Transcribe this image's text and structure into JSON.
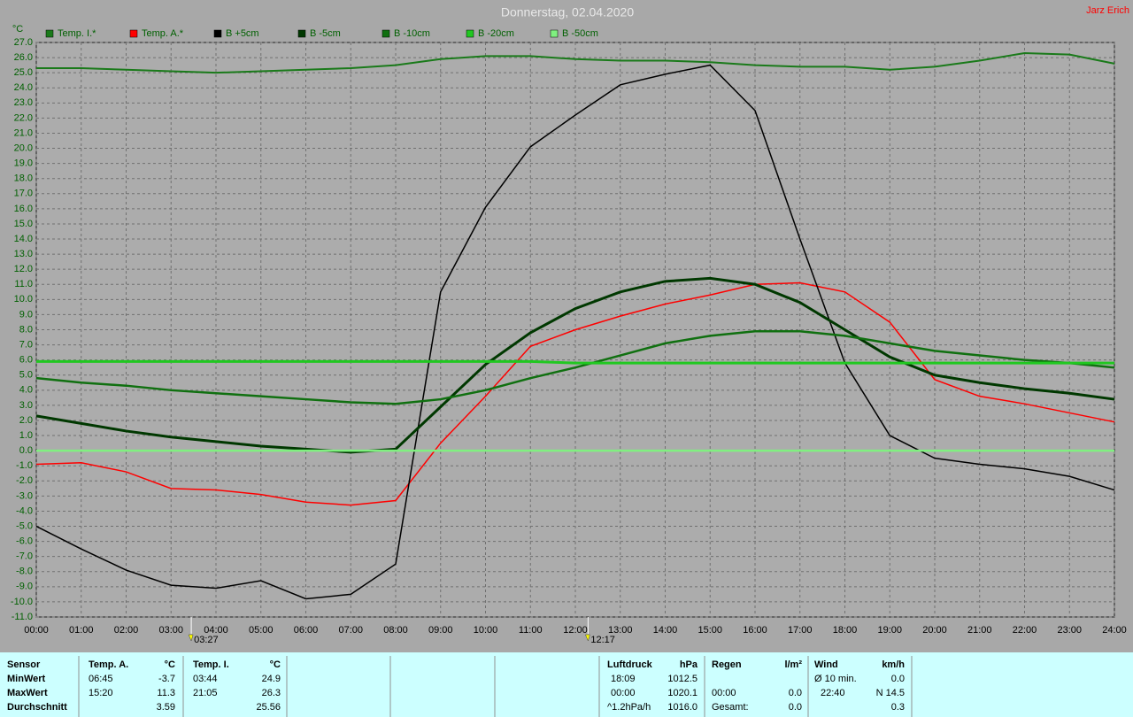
{
  "chart_data": {
    "type": "line",
    "title": "Donnerstag, 02.04.2020",
    "author": "Jarz Erich",
    "ylabel": "°C",
    "x": [
      0,
      1,
      2,
      3,
      4,
      5,
      6,
      7,
      8,
      9,
      10,
      11,
      12,
      13,
      14,
      15,
      16,
      17,
      18,
      19,
      20,
      21,
      22,
      23,
      24
    ],
    "xlim": [
      0,
      24
    ],
    "xticks": [
      {
        "value": 0,
        "label": "00:00"
      },
      {
        "value": 1,
        "label": "01:00"
      },
      {
        "value": 2,
        "label": "02:00"
      },
      {
        "value": 3,
        "label": "03:00"
      },
      {
        "value": 4,
        "label": "04:00"
      },
      {
        "value": 5,
        "label": "05:00"
      },
      {
        "value": 6,
        "label": "06:00"
      },
      {
        "value": 7,
        "label": "07:00"
      },
      {
        "value": 8,
        "label": "08:00"
      },
      {
        "value": 9,
        "label": "09:00"
      },
      {
        "value": 10,
        "label": "10:00"
      },
      {
        "value": 11,
        "label": "11:00"
      },
      {
        "value": 12,
        "label": "12:00"
      },
      {
        "value": 13,
        "label": "13:00"
      },
      {
        "value": 14,
        "label": "14:00"
      },
      {
        "value": 15,
        "label": "15:00"
      },
      {
        "value": 16,
        "label": "16:00"
      },
      {
        "value": 17,
        "label": "17:00"
      },
      {
        "value": 18,
        "label": "18:00"
      },
      {
        "value": 19,
        "label": "19:00"
      },
      {
        "value": 20,
        "label": "20:00"
      },
      {
        "value": 21,
        "label": "21:00"
      },
      {
        "value": 22,
        "label": "22:00"
      },
      {
        "value": 23,
        "label": "23:00"
      },
      {
        "value": 24,
        "label": "24:00"
      }
    ],
    "ylim": [
      -11,
      27
    ],
    "yticks": [
      {
        "value": 27,
        "label": "27.0"
      },
      {
        "value": 26,
        "label": "26.0"
      },
      {
        "value": 25,
        "label": "25.0"
      },
      {
        "value": 24,
        "label": "24.0"
      },
      {
        "value": 23,
        "label": "23.0"
      },
      {
        "value": 22,
        "label": "22.0"
      },
      {
        "value": 21,
        "label": "21.0"
      },
      {
        "value": 20,
        "label": "20.0"
      },
      {
        "value": 19,
        "label": "19.0"
      },
      {
        "value": 18,
        "label": "18.0"
      },
      {
        "value": 17,
        "label": "17.0"
      },
      {
        "value": 16,
        "label": "16.0"
      },
      {
        "value": 15,
        "label": "15.0"
      },
      {
        "value": 14,
        "label": "14.0"
      },
      {
        "value": 13,
        "label": "13.0"
      },
      {
        "value": 12,
        "label": "12.0"
      },
      {
        "value": 11,
        "label": "11.0"
      },
      {
        "value": 10,
        "label": "10.0"
      },
      {
        "value": 9,
        "label": "9.0"
      },
      {
        "value": 8,
        "label": "8.0"
      },
      {
        "value": 7,
        "label": "7.0"
      },
      {
        "value": 6,
        "label": "6.0"
      },
      {
        "value": 5,
        "label": "5.0"
      },
      {
        "value": 4,
        "label": "4.0"
      },
      {
        "value": 3,
        "label": "3.0"
      },
      {
        "value": 2,
        "label": "2.0"
      },
      {
        "value": 1,
        "label": "1.0"
      },
      {
        "value": 0,
        "label": "0.0"
      },
      {
        "value": -1,
        "label": "-1.0"
      },
      {
        "value": -2,
        "label": "-2.0"
      },
      {
        "value": -3,
        "label": "-3.0"
      },
      {
        "value": -4,
        "label": "-4.0"
      },
      {
        "value": -5,
        "label": "-5.0"
      },
      {
        "value": -6,
        "label": "-6.0"
      },
      {
        "value": -7,
        "label": "-7.0"
      },
      {
        "value": -8,
        "label": "-8.0"
      },
      {
        "value": -9,
        "label": "-9.0"
      },
      {
        "value": -10,
        "label": "-10.0"
      },
      {
        "value": -11,
        "label": "-11.0"
      }
    ],
    "grid": true,
    "series": [
      {
        "name": "Temp. I.*",
        "color": "#1a7a1a",
        "values": [
          25.3,
          25.3,
          25.2,
          25.1,
          25.0,
          25.1,
          25.2,
          25.3,
          25.5,
          25.9,
          26.1,
          26.1,
          25.9,
          25.8,
          25.8,
          25.7,
          25.5,
          25.4,
          25.4,
          25.2,
          25.4,
          25.8,
          26.3,
          26.2,
          25.6
        ]
      },
      {
        "name": "Temp. A.*",
        "color": "#ff0000",
        "values": [
          -0.9,
          -0.8,
          -1.4,
          -2.5,
          -2.6,
          -2.9,
          -3.4,
          -3.6,
          -3.3,
          0.5,
          3.6,
          6.9,
          8.0,
          8.9,
          9.7,
          10.3,
          11.0,
          11.1,
          10.5,
          8.5,
          4.7,
          3.6,
          3.1,
          2.5,
          1.9
        ]
      },
      {
        "name": "B +5cm",
        "color": "#000000",
        "values": [
          -5.0,
          -6.5,
          -7.9,
          -8.9,
          -9.1,
          -8.6,
          -9.8,
          -9.5,
          -7.5,
          10.5,
          16.1,
          20.1,
          22.2,
          24.2,
          24.9,
          25.5,
          22.5,
          14.0,
          5.8,
          1.0,
          -0.5,
          -0.9,
          -1.2,
          -1.7,
          -2.6
        ]
      },
      {
        "name": "B -5cm",
        "color": "#003800",
        "values": [
          2.3,
          1.8,
          1.3,
          0.9,
          0.6,
          0.3,
          0.1,
          -0.1,
          0.1,
          2.9,
          5.7,
          7.8,
          9.4,
          10.5,
          11.2,
          11.4,
          11.0,
          9.8,
          8.0,
          6.2,
          5.0,
          4.5,
          4.1,
          3.8,
          3.4
        ]
      },
      {
        "name": "B -10cm",
        "color": "#107010",
        "values": [
          4.8,
          4.5,
          4.3,
          4.0,
          3.8,
          3.6,
          3.4,
          3.2,
          3.1,
          3.4,
          4.0,
          4.8,
          5.5,
          6.3,
          7.1,
          7.6,
          7.9,
          7.9,
          7.6,
          7.1,
          6.6,
          6.3,
          6.0,
          5.8,
          5.5
        ]
      },
      {
        "name": "B -20cm",
        "color": "#20c820",
        "values": [
          5.9,
          5.9,
          5.9,
          5.9,
          5.9,
          5.9,
          5.9,
          5.9,
          5.9,
          5.9,
          5.9,
          5.9,
          5.8,
          5.8,
          5.8,
          5.8,
          5.8,
          5.8,
          5.8,
          5.8,
          5.8,
          5.8,
          5.8,
          5.8,
          5.8
        ]
      },
      {
        "name": "B -50cm",
        "color": "#80f080",
        "values": [
          0,
          0,
          0,
          0,
          0,
          0,
          0,
          0,
          0,
          0,
          0,
          0,
          0,
          0,
          0,
          0,
          0,
          0,
          0,
          0,
          0,
          0,
          0,
          0,
          0
        ]
      }
    ],
    "annotations": [
      {
        "text": "03:27",
        "x": 3.45
      },
      {
        "text": "12:17",
        "x": 12.2833
      }
    ]
  },
  "stats": {
    "header": [
      "Sensor",
      "Temp. A.",
      "°C",
      "Temp. I.",
      "°C",
      "Luftdruck",
      "hPa",
      "Regen",
      "l/m²",
      "Wind",
      "km/h"
    ],
    "rows": [
      [
        "MinWert",
        "06:45",
        "-3.7",
        "03:44",
        "24.9",
        "18:09",
        "1012.5",
        null,
        null,
        "Ø 10 min.",
        "0.0"
      ],
      [
        "MaxWert",
        "15:20",
        "11.3",
        "21:05",
        "26.3",
        "00:00",
        "1020.1",
        "00:00",
        "0.0",
        "22:40",
        "N 14.5"
      ],
      [
        "Durchschnitt",
        null,
        "3.59",
        null,
        "25.56",
        "^1.2hPa/h",
        "1016.0",
        "Gesamt:",
        "0.0",
        null,
        "0.3"
      ]
    ]
  }
}
